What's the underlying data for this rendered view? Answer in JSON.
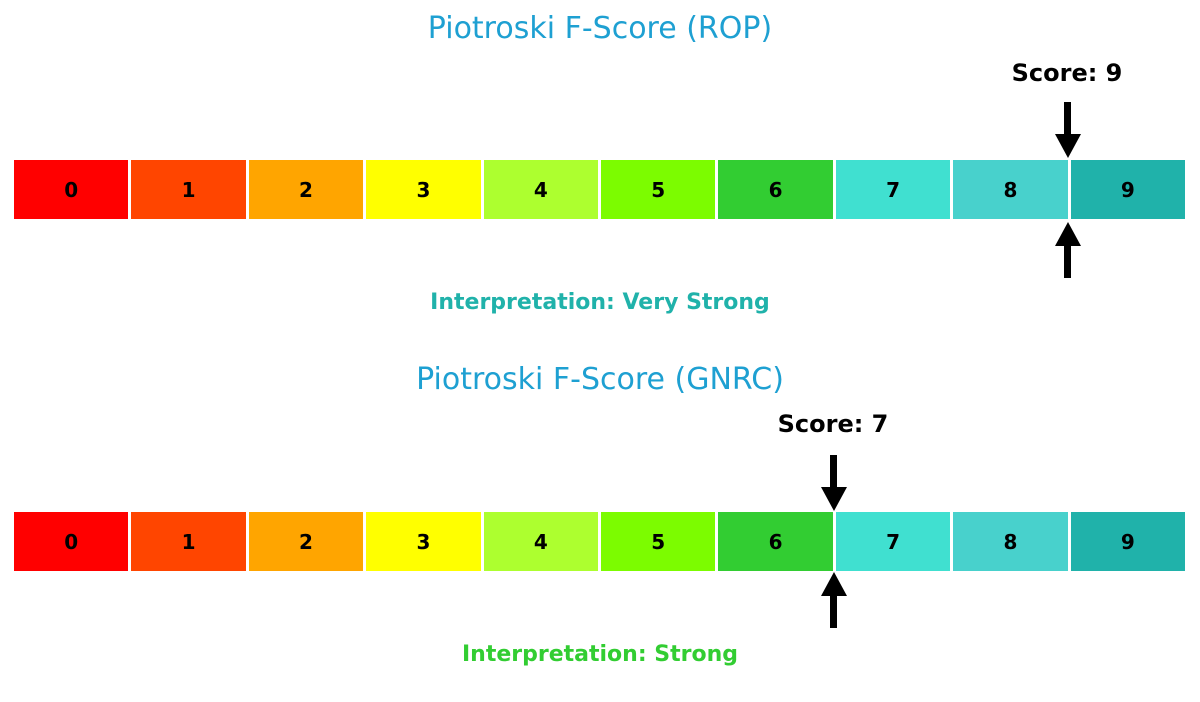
{
  "chart_data": [
    {
      "type": "bar",
      "title": "Piotroski F-Score (ROP)",
      "title_color": "#1ea0d2",
      "categories": [
        "0",
        "1",
        "2",
        "3",
        "4",
        "5",
        "6",
        "7",
        "8",
        "9"
      ],
      "segment_colors": [
        "#ff0000",
        "#ff4500",
        "#ffa500",
        "#ffff00",
        "#adff2f",
        "#7cfc00",
        "#32cd32",
        "#40e0d0",
        "#48d1cc",
        "#20b2aa"
      ],
      "xlim": [
        0,
        10
      ],
      "score": 9,
      "score_label": "Score: 9",
      "marker_fraction": 0.9,
      "interpretation": "Interpretation: Very Strong",
      "interpretation_color": "#20b2aa",
      "legend": "none",
      "grid": "off"
    },
    {
      "type": "bar",
      "title": "Piotroski F-Score (GNRC)",
      "title_color": "#1ea0d2",
      "categories": [
        "0",
        "1",
        "2",
        "3",
        "4",
        "5",
        "6",
        "7",
        "8",
        "9"
      ],
      "segment_colors": [
        "#ff0000",
        "#ff4500",
        "#ffa500",
        "#ffff00",
        "#adff2f",
        "#7cfc00",
        "#32cd32",
        "#40e0d0",
        "#48d1cc",
        "#20b2aa"
      ],
      "xlim": [
        0,
        10
      ],
      "score": 7,
      "score_label": "Score: 7",
      "marker_fraction": 0.7,
      "interpretation": "Interpretation: Strong",
      "interpretation_color": "#32cd32",
      "legend": "none",
      "grid": "off"
    }
  ]
}
